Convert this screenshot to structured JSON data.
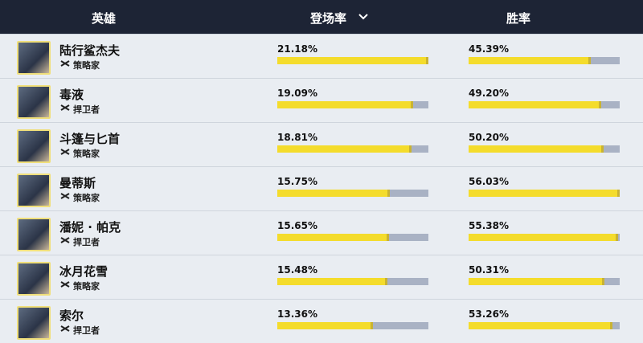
{
  "header": {
    "hero": "英雄",
    "pick_rate": "登场率",
    "win_rate": "胜率"
  },
  "rows": [
    {
      "name": "陆行鲨杰夫",
      "role": "策略家",
      "pick_rate": {
        "value": 21.18,
        "label": "21.18%"
      },
      "win_rate": {
        "value": 45.39,
        "label": "45.39%"
      }
    },
    {
      "name": "毒液",
      "role": "捍卫者",
      "pick_rate": {
        "value": 19.09,
        "label": "19.09%"
      },
      "win_rate": {
        "value": 49.2,
        "label": "49.20%"
      }
    },
    {
      "name": "斗篷与匕首",
      "role": "策略家",
      "pick_rate": {
        "value": 18.81,
        "label": "18.81%"
      },
      "win_rate": {
        "value": 50.2,
        "label": "50.20%"
      }
    },
    {
      "name": "曼蒂斯",
      "role": "策略家",
      "pick_rate": {
        "value": 15.75,
        "label": "15.75%"
      },
      "win_rate": {
        "value": 56.03,
        "label": "56.03%"
      }
    },
    {
      "name": "潘妮 · 帕克",
      "role": "捍卫者",
      "pick_rate": {
        "value": 15.65,
        "label": "15.65%"
      },
      "win_rate": {
        "value": 55.38,
        "label": "55.38%"
      }
    },
    {
      "name": "冰月花雪",
      "role": "策略家",
      "pick_rate": {
        "value": 15.48,
        "label": "15.48%"
      },
      "win_rate": {
        "value": 50.31,
        "label": "50.31%"
      }
    },
    {
      "name": "索尔",
      "role": "捍卫者",
      "pick_rate": {
        "value": 13.36,
        "label": "13.36%"
      },
      "win_rate": {
        "value": 53.26,
        "label": "53.26%"
      }
    }
  ]
}
